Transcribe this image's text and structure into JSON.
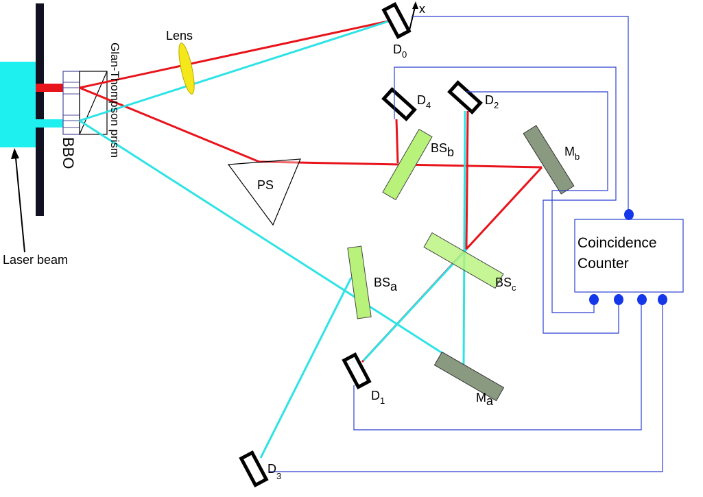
{
  "labels": {
    "lens": "Lens",
    "prism": "Glan-Thompson prism",
    "bbo": "BBO",
    "laser": "Laser beam",
    "ps": "PS",
    "coincidence_line1": "Coincidence",
    "coincidence_line2": "Counter",
    "x": "x"
  },
  "components": {
    "d0": {
      "main": "D",
      "sub": "0"
    },
    "d1": {
      "main": "D",
      "sub": "1"
    },
    "d2": {
      "main": "D",
      "sub": "2"
    },
    "d3": {
      "main": "D",
      "sub": "3"
    },
    "d4": {
      "main": "D",
      "sub": "4"
    },
    "bsa": {
      "main": "BS",
      "sub": "a"
    },
    "bsb": {
      "main": "BS",
      "sub": "b"
    },
    "bsc": {
      "main": "BS",
      "sub": "c"
    },
    "ma": {
      "main": "M",
      "sub": "a"
    },
    "mb": {
      "main": "M",
      "sub": "b"
    }
  },
  "colors": {
    "red_beam": "#e8141c",
    "cyan_beam": "#2ee3e6",
    "laser_block": "#1ef0f0",
    "wire": "#2a3fd0",
    "beamsplitter": "#b8f27a",
    "mirror": "#8a9a80",
    "lens": "#f5e81a",
    "connector": "#1437ea"
  }
}
